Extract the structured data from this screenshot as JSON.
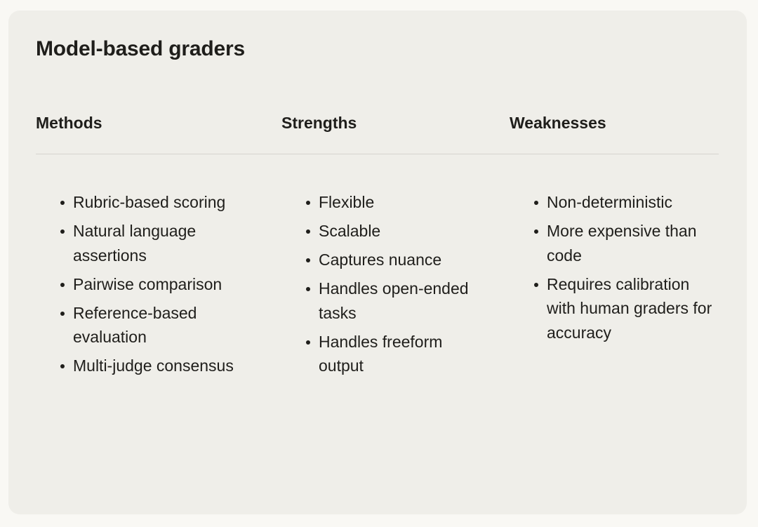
{
  "card": {
    "title": "Model-based graders",
    "columns": [
      {
        "heading": "Methods",
        "items": [
          "Rubric-based scoring",
          "Natural language assertions",
          "Pairwise comparison",
          "Reference-based evaluation",
          "Multi-judge consensus"
        ]
      },
      {
        "heading": "Strengths",
        "items": [
          "Flexible",
          "Scalable",
          "Captures nuance",
          "Handles open-ended tasks",
          "Handles freeform output"
        ]
      },
      {
        "heading": "Weaknesses",
        "items": [
          "Non-deterministic",
          "More expensive than code",
          "Requires calibration with human graders for accuracy"
        ]
      }
    ]
  }
}
